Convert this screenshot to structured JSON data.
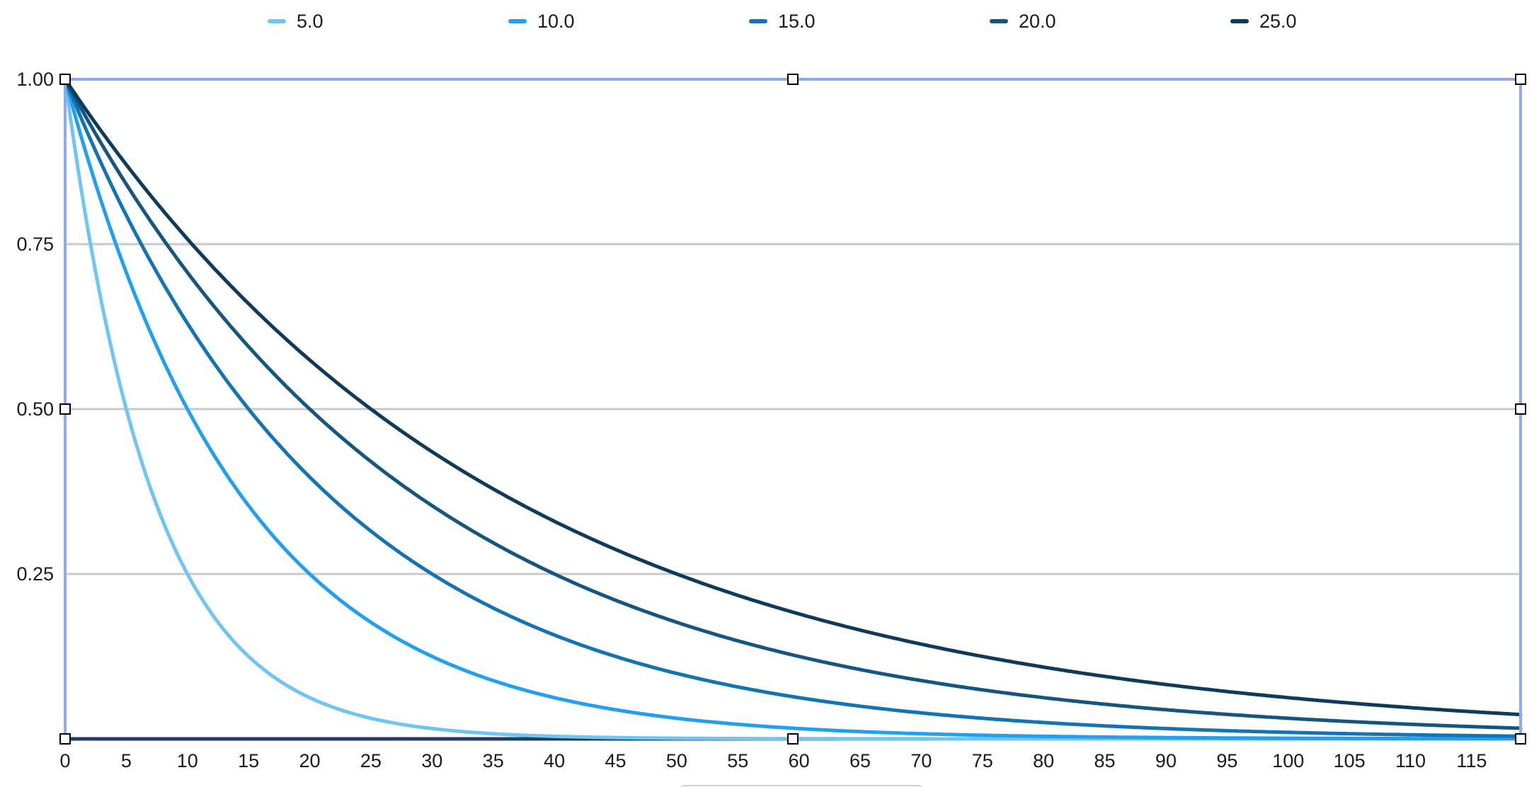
{
  "chart_data": {
    "type": "line",
    "title": "",
    "xlabel": "",
    "ylabel": "",
    "model": "y = 0.5^(x / half_life)",
    "x_range": [
      0,
      119
    ],
    "ylim": [
      0,
      1
    ],
    "grid": "horizontal-gray-lines-at-0.25-0.50-0.75",
    "legend_position": "top",
    "x_ticks": [
      0,
      5,
      10,
      15,
      20,
      25,
      30,
      35,
      40,
      45,
      50,
      55,
      60,
      65,
      70,
      75,
      80,
      85,
      90,
      95,
      100,
      105,
      110,
      115
    ],
    "y_ticks": [
      {
        "label": "1.00",
        "value": 1.0
      },
      {
        "label": "0.75",
        "value": 0.75
      },
      {
        "label": "0.50",
        "value": 0.5
      },
      {
        "label": "0.25",
        "value": 0.25
      }
    ],
    "x_samples": [
      0,
      5,
      10,
      15,
      20,
      25,
      30,
      35,
      40,
      45,
      50,
      55,
      60,
      65,
      70,
      75,
      80,
      85,
      90,
      95,
      100,
      105,
      110,
      115
    ],
    "series": [
      {
        "name": "5.0",
        "half_life": 5,
        "color": "#6fc6f4",
        "values": [
          1.0,
          0.5,
          0.25,
          0.125,
          0.063,
          0.031,
          0.016,
          0.008,
          0.004,
          0.002,
          0.001,
          0.0,
          0.0,
          0.0,
          0.0,
          0.0,
          0.0,
          0.0,
          0.0,
          0.0,
          0.0,
          0.0,
          0.0,
          0.0
        ]
      },
      {
        "name": "10.0",
        "half_life": 10,
        "color": "#219ff1",
        "values": [
          1.0,
          0.707,
          0.5,
          0.354,
          0.25,
          0.177,
          0.125,
          0.088,
          0.063,
          0.044,
          0.031,
          0.022,
          0.016,
          0.011,
          0.008,
          0.006,
          0.004,
          0.003,
          0.002,
          0.001,
          0.001,
          0.001,
          0.0,
          0.0
        ]
      },
      {
        "name": "15.0",
        "half_life": 15,
        "color": "#1274b3",
        "values": [
          1.0,
          0.794,
          0.63,
          0.5,
          0.397,
          0.315,
          0.25,
          0.198,
          0.157,
          0.125,
          0.099,
          0.079,
          0.063,
          0.05,
          0.04,
          0.031,
          0.025,
          0.02,
          0.016,
          0.012,
          0.01,
          0.008,
          0.006,
          0.005
        ]
      },
      {
        "name": "20.0",
        "half_life": 20,
        "color": "#155680",
        "values": [
          1.0,
          0.841,
          0.707,
          0.595,
          0.5,
          0.42,
          0.354,
          0.297,
          0.25,
          0.21,
          0.177,
          0.149,
          0.125,
          0.105,
          0.088,
          0.074,
          0.063,
          0.053,
          0.044,
          0.037,
          0.031,
          0.026,
          0.022,
          0.019
        ]
      },
      {
        "name": "25.0",
        "half_life": 25,
        "color": "#0e3a5c",
        "values": [
          1.0,
          0.871,
          0.758,
          0.66,
          0.574,
          0.5,
          0.435,
          0.379,
          0.33,
          0.287,
          0.25,
          0.218,
          0.189,
          0.165,
          0.144,
          0.125,
          0.109,
          0.095,
          0.082,
          0.072,
          0.063,
          0.054,
          0.047,
          0.041
        ]
      }
    ]
  },
  "colors": {
    "gridline": "#c9c9c9",
    "x_axis_line": "#223c66",
    "selection_border": "#8fa9ec",
    "handle_fill": "#ffffff",
    "handle_border": "#000000",
    "tick_text": "#1b1b1b"
  }
}
